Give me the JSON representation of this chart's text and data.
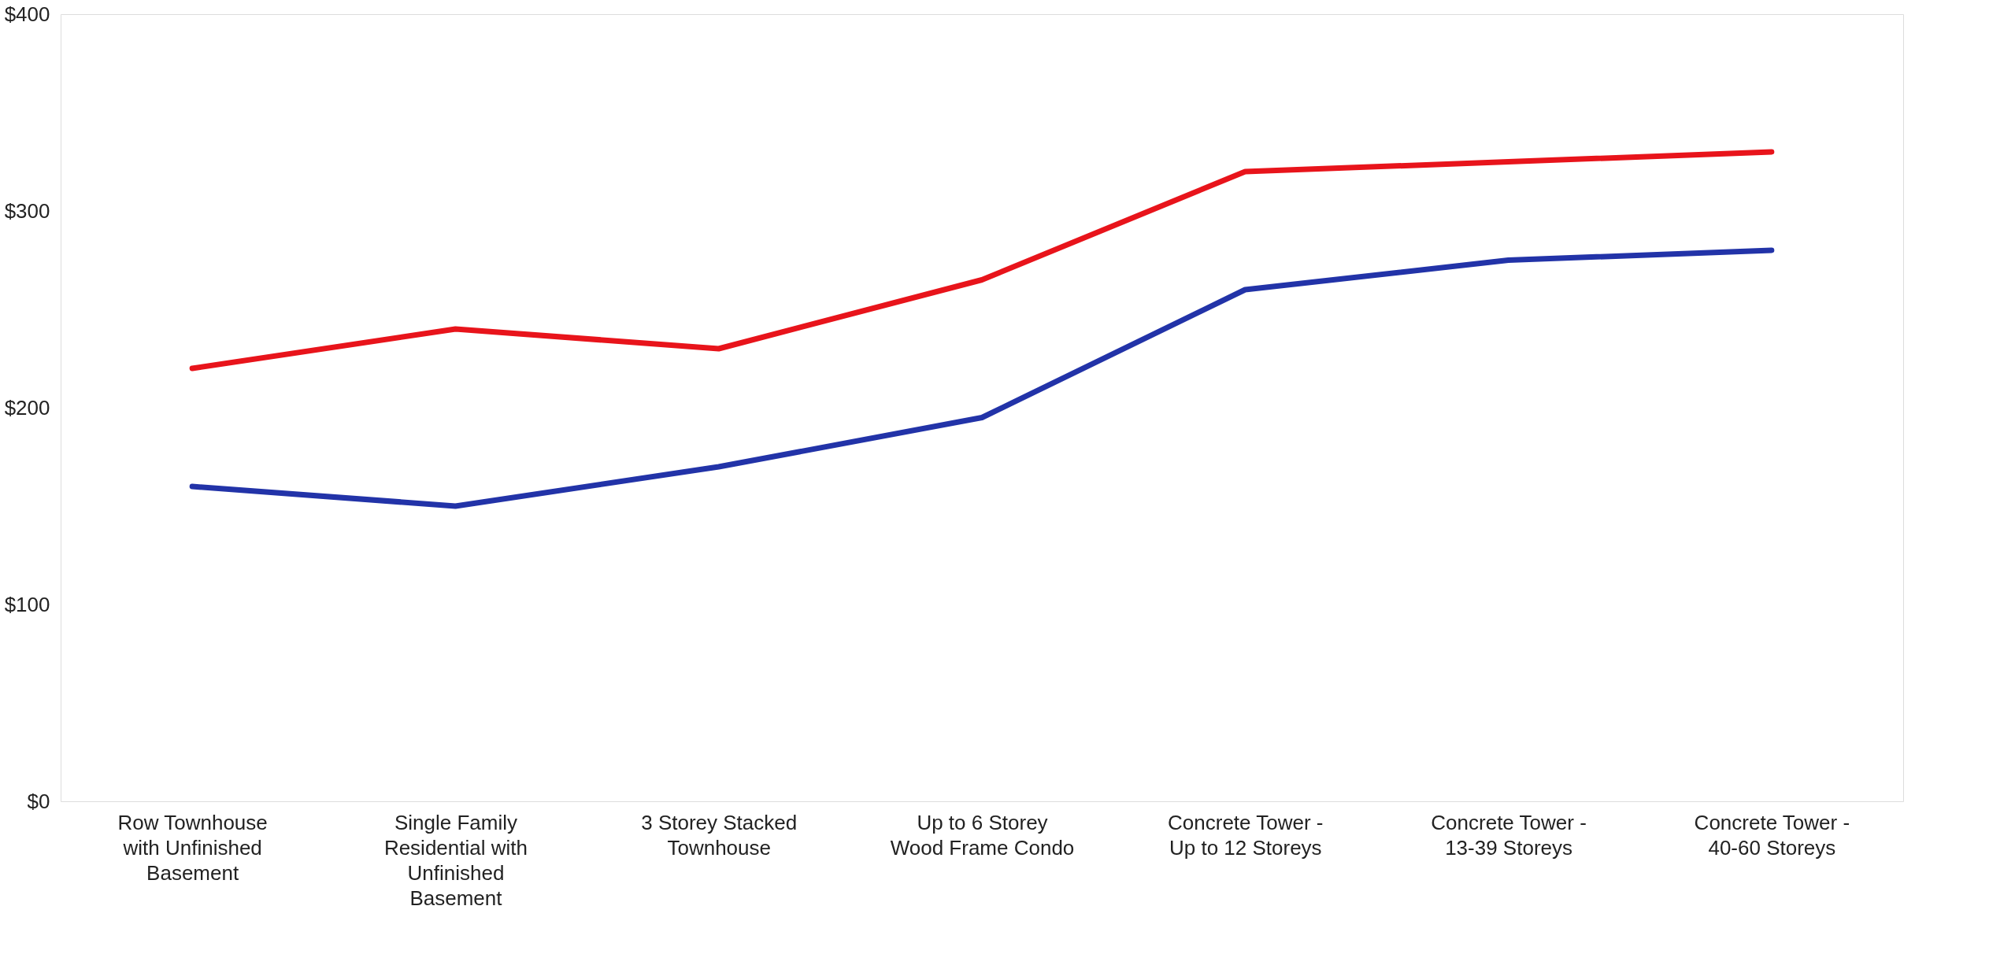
{
  "chart_data": {
    "type": "line",
    "categories": [
      "Row Townhouse with Unfinished Basement",
      "Single Family Residential with Unfinished Basement",
      "3 Storey Stacked Townhouse",
      "Up to 6 Storey Wood Frame Condo",
      "Concrete Tower - Up to 12 Storeys",
      "Concrete Tower - 13-39 Storeys",
      "Concrete Tower - 40-60 Storeys"
    ],
    "series": [
      {
        "color": "#e8141b",
        "values": [
          220,
          240,
          230,
          265,
          320,
          325,
          330
        ]
      },
      {
        "color": "#2233a8",
        "values": [
          160,
          150,
          170,
          195,
          260,
          275,
          280
        ]
      }
    ],
    "ylim": [
      0,
      400
    ],
    "yticks": [
      {
        "value": 0,
        "label": "$0"
      },
      {
        "value": 100,
        "label": "$100"
      },
      {
        "value": 200,
        "label": "$200"
      },
      {
        "value": 300,
        "label": "$300"
      },
      {
        "value": 400,
        "label": "$400"
      }
    ],
    "grid": false,
    "marker": "none",
    "line_style": "solid"
  }
}
